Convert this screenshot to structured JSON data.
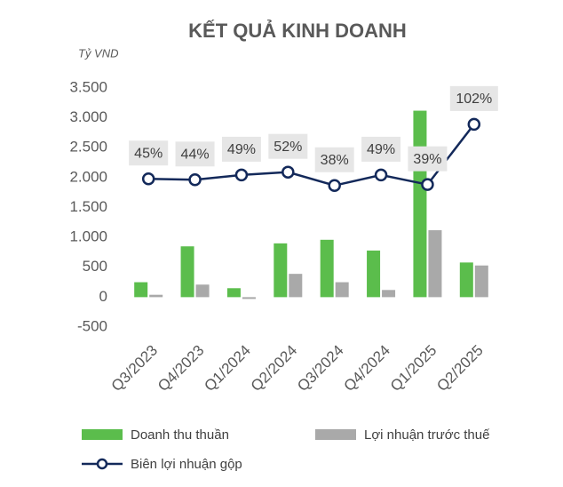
{
  "chart_data": {
    "type": "combo",
    "title": "KẾT QUẢ KINH DOANH",
    "y_label": "Tỷ VND",
    "categories": [
      "Q3/2023",
      "Q4/2023",
      "Q1/2024",
      "Q2/2024",
      "Q3/2024",
      "Q4/2024",
      "Q1/2025",
      "Q2/2025"
    ],
    "ylim": [
      -500,
      3500
    ],
    "yticks": [
      -500,
      0,
      500,
      {
        "value": 1000,
        "label": "1.000"
      },
      {
        "value": 1500,
        "label": "1.500"
      },
      {
        "value": 2000,
        "label": "2.000"
      },
      {
        "value": 2500,
        "label": "2.500"
      },
      {
        "value": 3000,
        "label": "3.000"
      },
      {
        "value": 3500,
        "label": "3.500"
      }
    ],
    "y2lim": [
      -110,
      140
    ],
    "grid": false,
    "series": [
      {
        "name": "Doanh thu thuần",
        "type": "bar",
        "color": "#5bbd4c",
        "values": [
          250,
          850,
          150,
          900,
          960,
          780,
          3120,
          580
        ]
      },
      {
        "name": "Lợi nhuận trước thuế",
        "type": "bar",
        "color": "#a9a9a9",
        "values": [
          40,
          210,
          -30,
          390,
          250,
          120,
          1120,
          530
        ]
      },
      {
        "name": "Biên lợi nhuận gộp",
        "type": "line",
        "axis": "y2",
        "color": "#13295a",
        "values": [
          45,
          44,
          49,
          52,
          38,
          49,
          39,
          102
        ],
        "value_labels": [
          "45%",
          "44%",
          "49%",
          "52%",
          "38%",
          "49%",
          "39%",
          "102%"
        ]
      }
    ]
  }
}
